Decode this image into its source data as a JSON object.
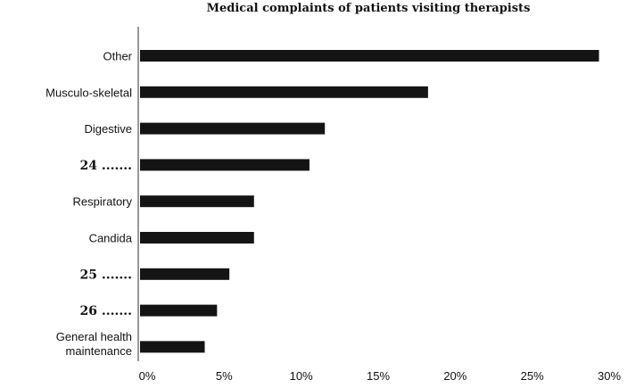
{
  "chart_data": {
    "type": "bar",
    "orientation": "horizontal",
    "title": "Medical complaints of patients visiting therapists",
    "categories": [
      "Other",
      "Musculo-skeletal",
      "Digestive",
      "24 .......",
      "Respiratory",
      "Candida",
      "25 .......",
      "26 .......",
      "General health maintenance"
    ],
    "values": [
      29.8,
      18.7,
      12.0,
      11.0,
      7.4,
      7.4,
      5.8,
      5.0,
      4.2
    ],
    "xlim": [
      0,
      30
    ],
    "x_ticks": [
      "0%",
      "5%",
      "10%",
      "15%",
      "20%",
      "25%",
      "30%"
    ],
    "xlabel": "",
    "ylabel": "",
    "grid": false,
    "bar_color": "#141414"
  }
}
